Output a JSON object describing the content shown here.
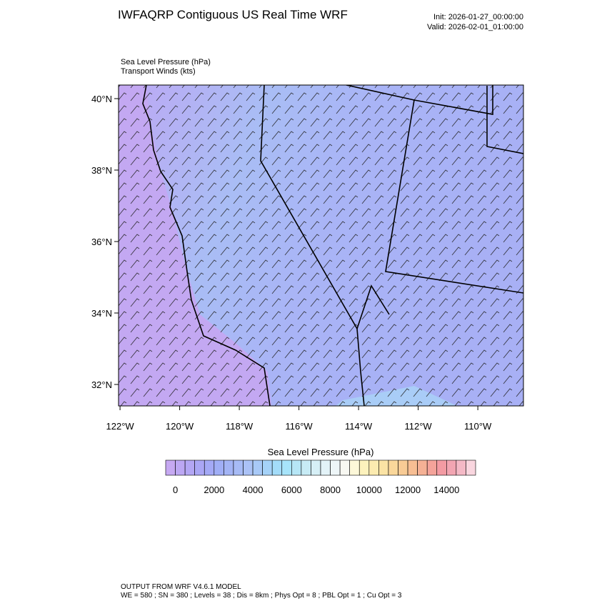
{
  "header": {
    "title": "IWFAQRP Contiguous US Real Time WRF",
    "init": "Init: 2026-01-27_00:00:00",
    "valid": "Valid: 2026-02-01_01:00:00",
    "field1": "Sea Level Pressure   (hPa)",
    "field2": "Transport Winds   (kts)"
  },
  "map": {
    "xlim": [
      -122.05,
      -108.47
    ],
    "ylim": [
      31.4,
      40.38
    ],
    "xticks": [
      {
        "value": -122,
        "label": "122°W"
      },
      {
        "value": -120,
        "label": "120°W"
      },
      {
        "value": -118,
        "label": "118°W"
      },
      {
        "value": -116,
        "label": "116°W"
      },
      {
        "value": -114,
        "label": "114°W"
      },
      {
        "value": -112,
        "label": "112°W"
      },
      {
        "value": -110,
        "label": "110°W"
      }
    ],
    "yticks": [
      {
        "value": 32,
        "label": "32°N"
      },
      {
        "value": 34,
        "label": "34°N"
      },
      {
        "value": 36,
        "label": "36°N"
      },
      {
        "value": 38,
        "label": "38°N"
      },
      {
        "value": 40,
        "label": "40°N"
      }
    ]
  },
  "colorbar": {
    "title": "Sea Level Pressure  (hPa)",
    "lim": [
      -500,
      15500
    ],
    "ticks": [
      0,
      2000,
      4000,
      6000,
      8000,
      10000,
      12000,
      14000
    ],
    "colors": [
      "#c6a9f2",
      "#bca7f3",
      "#b3a6f4",
      "#aaa6f5",
      "#a4a9f6",
      "#a0aef6",
      "#a3b4f5",
      "#a7bbf5",
      "#abc2f6",
      "#a8c9f7",
      "#a5d2f8",
      "#a3dcf9",
      "#a7e4fa",
      "#b6e6f6",
      "#c7ebf5",
      "#d6eff6",
      "#e3f3f8",
      "#eef6f8",
      "#f8f8f2",
      "#fdf8d9",
      "#fdf2bd",
      "#fcebb0",
      "#fbe3a4",
      "#fad79a",
      "#f8cb95",
      "#f7be93",
      "#f5b195",
      "#f4a39a",
      "#f39ba3",
      "#f2a5b2",
      "#f4b9c6",
      "#f9d6df"
    ]
  },
  "footer": {
    "line1": "OUTPUT FROM WRF V4.6.1 MODEL",
    "line2": "WE = 580 ; SN = 380 ; Levels = 38 ; Dis = 8km ; Phys Opt = 8 ; PBL Opt = 1 ; Cu Opt = 3"
  }
}
